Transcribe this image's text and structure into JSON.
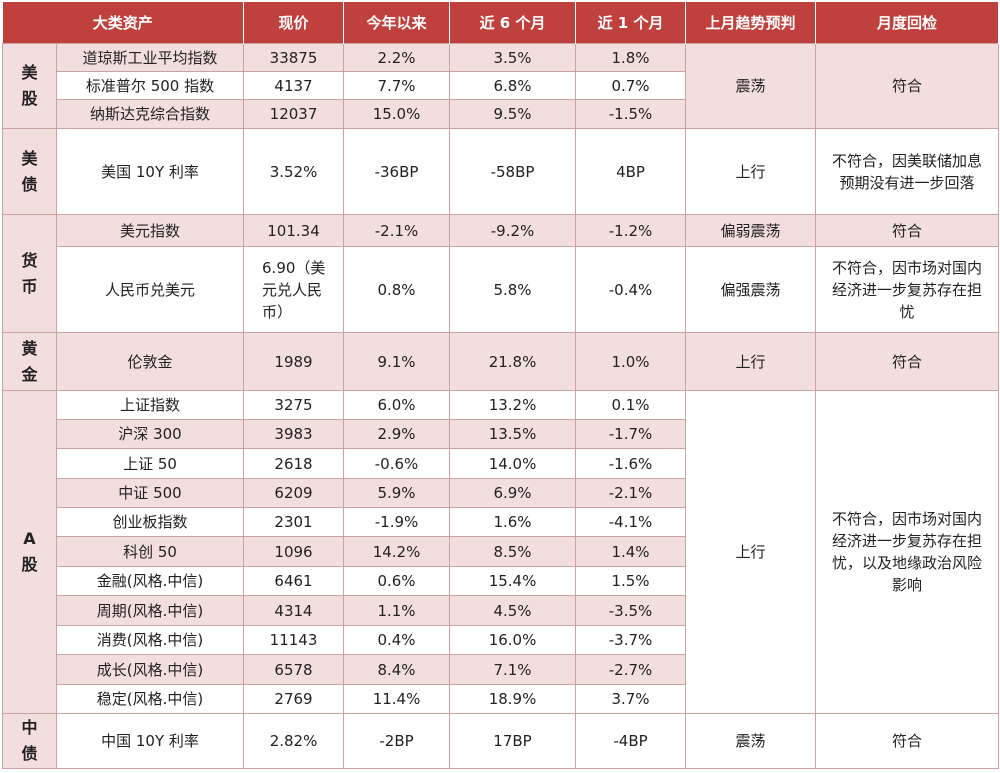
{
  "headers": [
    "大类资产",
    "现价",
    "今年以来",
    "近 6 个月",
    "近 1 个月",
    "上月趋势预判",
    "月度回检"
  ],
  "groups": [
    {
      "category": "美\n股",
      "rows": [
        {
          "name": "道琼斯工业平均指数",
          "price": "33875",
          "ytd": "2.2%",
          "m6": "3.5%",
          "m1": "1.8%"
        },
        {
          "name": "标准普尔 500 指数",
          "price": "4137",
          "ytd": "7.7%",
          "m6": "6.8%",
          "m1": "0.7%"
        },
        {
          "name": "纳斯达克综合指数",
          "price": "12037",
          "ytd": "15.0%",
          "m6": "9.5%",
          "m1": "-1.5%"
        }
      ],
      "trend": "震荡",
      "check": "符合"
    },
    {
      "category": "美\n债",
      "rows": [
        {
          "name": "美国 10Y 利率",
          "price": "3.52%",
          "ytd": "-36BP",
          "m6": "-58BP",
          "m1": "4BP"
        }
      ],
      "trend": "上行",
      "check": "不符合，因美联储加息预期没有进一步回落"
    },
    {
      "category": "货\n币",
      "rows": [
        {
          "name": "美元指数",
          "price": "101.34",
          "ytd": "-2.1%",
          "m6": "-9.2%",
          "m1": "-1.2%",
          "trend": "偏弱震荡",
          "check": "符合"
        },
        {
          "name": "人民币兑美元",
          "price": "6.90（美元兑人民币）",
          "ytd": "0.8%",
          "m6": "5.8%",
          "m1": "-0.4%",
          "trend": "偏强震荡",
          "check": "不符合，因市场对国内经济进一步复苏存在担忧"
        }
      ]
    },
    {
      "category": "黄\n金",
      "rows": [
        {
          "name": "伦敦金",
          "price": "1989",
          "ytd": "9.1%",
          "m6": "21.8%",
          "m1": "1.0%"
        }
      ],
      "trend": "上行",
      "check": "符合"
    },
    {
      "category": "A\n股",
      "rows": [
        {
          "name": "上证指数",
          "price": "3275",
          "ytd": "6.0%",
          "m6": "13.2%",
          "m1": "0.1%"
        },
        {
          "name": "沪深 300",
          "price": "3983",
          "ytd": "2.9%",
          "m6": "13.5%",
          "m1": "-1.7%"
        },
        {
          "name": "上证 50",
          "price": "2618",
          "ytd": "-0.6%",
          "m6": "14.0%",
          "m1": "-1.6%"
        },
        {
          "name": "中证 500",
          "price": "6209",
          "ytd": "5.9%",
          "m6": "6.9%",
          "m1": "-2.1%"
        },
        {
          "name": "创业板指数",
          "price": "2301",
          "ytd": "-1.9%",
          "m6": "1.6%",
          "m1": "-4.1%"
        },
        {
          "name": "科创 50",
          "price": "1096",
          "ytd": "14.2%",
          "m6": "8.5%",
          "m1": "1.4%"
        },
        {
          "name": "金融(风格.中信)",
          "price": "6461",
          "ytd": "0.6%",
          "m6": "15.4%",
          "m1": "1.5%"
        },
        {
          "name": "周期(风格.中信)",
          "price": "4314",
          "ytd": "1.1%",
          "m6": "4.5%",
          "m1": "-3.5%"
        },
        {
          "name": "消费(风格.中信)",
          "price": "11143",
          "ytd": "0.4%",
          "m6": "16.0%",
          "m1": "-3.7%"
        },
        {
          "name": "成长(风格.中信)",
          "price": "6578",
          "ytd": "8.4%",
          "m6": "7.1%",
          "m1": "-2.7%"
        },
        {
          "name": "稳定(风格.中信)",
          "price": "2769",
          "ytd": "11.4%",
          "m6": "18.9%",
          "m1": "3.7%"
        }
      ],
      "trend": "上行",
      "check": "不符合，因市场对国内经济进一步复苏存在担忧，以及地缘政治风险影响"
    },
    {
      "category": "中\n债",
      "rows": [
        {
          "name": "中国 10Y 利率",
          "price": "2.82%",
          "ytd": "-2BP",
          "m6": "17BP",
          "m1": "-4BP"
        }
      ],
      "trend": "震荡",
      "check": "符合"
    }
  ],
  "colors": {
    "header_bg": "#c0403d",
    "header_text": "#ffffff",
    "row_pink": "#f3dede",
    "border": "#c9a2a2"
  }
}
